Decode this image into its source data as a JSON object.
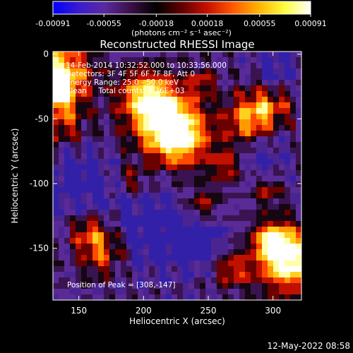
{
  "chart_data": {
    "type": "heatmap",
    "title": "Reconstructed RHESSI Image",
    "xlabel": "Heliocentric X (arcsec)",
    "ylabel": "Heliocentric Y (arcsec)",
    "xlim": [
      130,
      322
    ],
    "ylim": [
      -190,
      2
    ],
    "x_ticks": [
      150,
      200,
      250,
      300
    ],
    "y_ticks": [
      0,
      -50,
      -100,
      -150
    ],
    "colorbar": {
      "min": -0.00091,
      "max": 0.00091,
      "ticks": [
        -0.00091,
        -0.00055,
        -0.00018,
        0.00018,
        0.00055,
        0.00091
      ],
      "tick_labels": [
        "-0.00091",
        "-0.00055",
        "-0.00018",
        "0.00018",
        "0.00055",
        "0.00091"
      ],
      "units_label": "(photons cm⁻² s⁻¹ asec⁻²)",
      "stops": [
        "#0000ff",
        "#3a1ccc",
        "#5a2aa0",
        "#3c1048",
        "#000000",
        "#600000",
        "#c81000",
        "#ff5a00",
        "#ffb400",
        "#ffff40",
        "#ffffff"
      ]
    },
    "annotations": [
      "14-Feb-2014 10:32:52.000 to 10:33:56.000",
      "Detectors: 3F 4F 5F 6F 7F 8F, Att 0",
      "Energy Range: 25.0 - 50.0 keV",
      "Clean     Total counts: 2.36E+03",
      "Position of Peak = [308,-147]"
    ],
    "peak_position": [
      308,
      -147
    ],
    "timestamp": "12-May-2022 08:58"
  }
}
